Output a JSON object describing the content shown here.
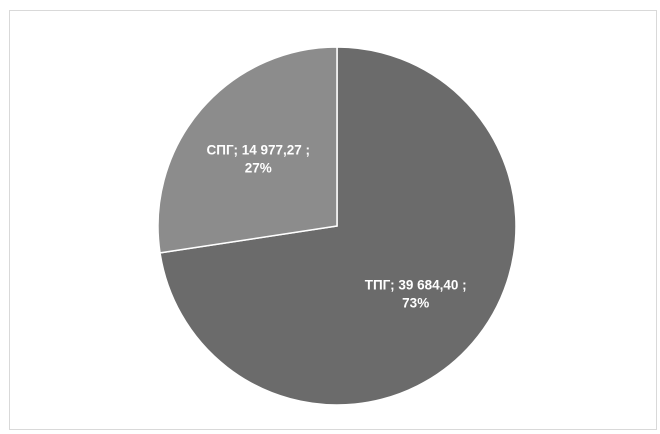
{
  "chart_data": {
    "type": "pie",
    "slices": [
      {
        "label": "ТПГ",
        "value": 39684.4,
        "value_text": "39 684,40",
        "percent": 73,
        "percent_text": "73%",
        "color": "#6b6b6b"
      },
      {
        "label": "СПГ",
        "value": 14977.27,
        "value_text": "14 977,27",
        "percent": 27,
        "percent_text": "27%",
        "color": "#8c8c8c"
      }
    ],
    "start_angle_deg": 0,
    "direction": "clockwise",
    "data_label_separator": ";",
    "legend": "none"
  }
}
